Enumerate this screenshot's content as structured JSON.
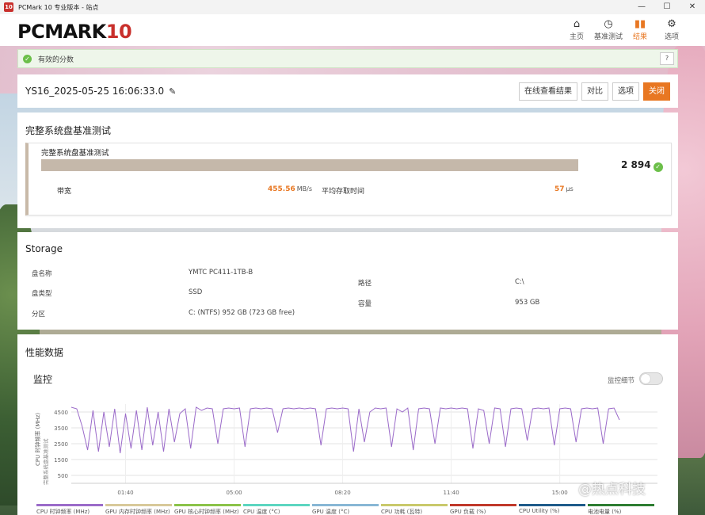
{
  "window": {
    "app_icon": "10",
    "title": "PCMark 10 专业版本 - 站点"
  },
  "header": {
    "logo_main": "PCMARK",
    "logo_ten": "10",
    "nav": [
      {
        "label": "主页",
        "icon": "home-icon"
      },
      {
        "label": "基准测试",
        "icon": "gauge-icon"
      },
      {
        "label": "结果",
        "icon": "bar-chart-icon",
        "active": true
      },
      {
        "label": "选项",
        "icon": "gear-icon"
      }
    ]
  },
  "status": {
    "text": "有效的分数",
    "help": "?"
  },
  "result": {
    "name": "YS16_2025-05-25 16:06:33.0",
    "buttons": [
      "在线查看结果",
      "对比",
      "选项",
      "关闭"
    ]
  },
  "test": {
    "section_title": "完整系统盘基准测试",
    "name": "完整系统盘基准测试",
    "score": "2 894",
    "bandwidth_label": "带宽",
    "bandwidth_value": "455.56",
    "bandwidth_unit": "MB/s",
    "latency_label": "平均存取时间",
    "latency_value": "57",
    "latency_unit": "μs"
  },
  "storage": {
    "title": "Storage",
    "disk_name_label": "盘名称",
    "disk_name": "YMTC PC411-1TB-B",
    "disk_type_label": "盘类型",
    "disk_type": "SSD",
    "partition_label": "分区",
    "partition": "C: (NTFS) 952 GB (723 GB free)",
    "path_label": "路径",
    "path": "C:\\",
    "capacity_label": "容量",
    "capacity": "953 GB"
  },
  "performance": {
    "title": "性能数据",
    "monitor_title": "监控",
    "detail_toggle_label": "监控细节",
    "legend": [
      {
        "label": "CPU 时钟频率 (MHz)",
        "color": "#9b6bc9"
      },
      {
        "label": "GPU 内存时钟频率 (MHz)",
        "color": "#d8c99a"
      },
      {
        "label": "GPU 核心时钟频率 (MHz)",
        "color": "#8bc34a"
      },
      {
        "label": "CPU 温度 (°C)",
        "color": "#5cd6c0"
      },
      {
        "label": "GPU 温度 (°C)",
        "color": "#88b7d5"
      },
      {
        "label": "CPU 功耗 (瓦特)",
        "color": "#c9c96b"
      },
      {
        "label": "GPU 负载 (%)",
        "color": "#c0392b"
      },
      {
        "label": "CPU Utility (%)",
        "color": "#1f5b8a"
      },
      {
        "label": "电池电量 (%)",
        "color": "#2e7d32"
      }
    ]
  },
  "chart_data": {
    "type": "line",
    "ylabel": "CPU 时钟频率 (MHz)",
    "ylabel_secondary": "完整系统盘基准测试",
    "ylim": [
      0,
      5000
    ],
    "yticks": [
      500,
      1500,
      2500,
      3500,
      4500
    ],
    "xticks": [
      "01:40",
      "05:00",
      "08:20",
      "11:40",
      "15:00"
    ],
    "xlim_seconds": [
      0,
      1080
    ],
    "series": [
      {
        "name": "CPU 时钟频率 (MHz)",
        "color": "#9b6bc9",
        "x": [
          0,
          10,
          20,
          30,
          40,
          50,
          60,
          70,
          80,
          90,
          100,
          110,
          120,
          130,
          140,
          150,
          160,
          170,
          180,
          190,
          200,
          210,
          220,
          230,
          240,
          250,
          260,
          270,
          280,
          290,
          300,
          310,
          320,
          330,
          340,
          350,
          360,
          370,
          380,
          390,
          400,
          410,
          420,
          430,
          440,
          450,
          460,
          470,
          480,
          490,
          500,
          510,
          520,
          530,
          540,
          550,
          560,
          570,
          580,
          590,
          600,
          610,
          620,
          630,
          640,
          650,
          660,
          670,
          680,
          690,
          700,
          710,
          720,
          730,
          740,
          750,
          760,
          770,
          780,
          790,
          800,
          810,
          820,
          830,
          840,
          850,
          860,
          870,
          880,
          890,
          900,
          910,
          920,
          930,
          940,
          950,
          960,
          970,
          980,
          990,
          1000,
          1010
        ],
        "values": [
          4800,
          4700,
          3600,
          2100,
          4600,
          2000,
          4500,
          2300,
          4700,
          1900,
          4400,
          2200,
          4600,
          2100,
          4800,
          2400,
          4500,
          2000,
          4700,
          2600,
          4400,
          4700,
          2200,
          4800,
          4600,
          4750,
          4700,
          2500,
          4700,
          4750,
          4700,
          4750,
          2300,
          4700,
          4750,
          4700,
          4750,
          4700,
          3200,
          4700,
          4750,
          4700,
          4750,
          4700,
          4750,
          4700,
          2400,
          4700,
          4750,
          4700,
          4750,
          4700,
          2000,
          4700,
          2600,
          4500,
          4750,
          4700,
          4750,
          2300,
          4700,
          4500,
          4750,
          2100,
          4700,
          4750,
          4700,
          2500,
          4750,
          4700,
          4750,
          4700,
          4750,
          4700,
          2200,
          4700,
          4600,
          2500,
          4750,
          4700,
          2300,
          4700,
          4750,
          4700,
          2700,
          4700,
          4750,
          4700,
          4750,
          2400,
          4700,
          4750,
          4700,
          2600,
          4700,
          4750,
          4700,
          4750,
          2500,
          4700,
          4750,
          4000
        ]
      }
    ]
  }
}
